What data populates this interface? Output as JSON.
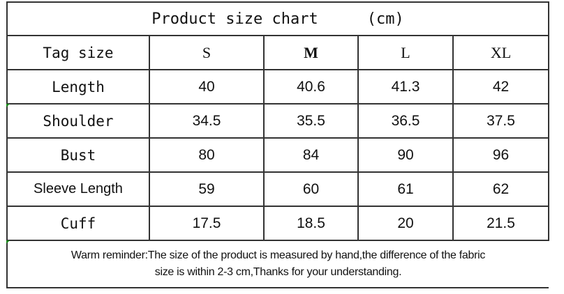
{
  "title": "Product size chart",
  "unit": "(cm)",
  "header": {
    "label": "Tag size",
    "sizes": [
      "S",
      "M",
      "L",
      "XL"
    ]
  },
  "rows": [
    {
      "label": "Length",
      "values": [
        "40",
        "40.6",
        "41.3",
        "42"
      ]
    },
    {
      "label": "Shoulder",
      "values": [
        "34.5",
        "35.5",
        "36.5",
        "37.5"
      ]
    },
    {
      "label": "Bust",
      "values": [
        "80",
        "84",
        "90",
        "96"
      ]
    },
    {
      "label": "Sleeve Length",
      "values": [
        "59",
        "60",
        "61",
        "62"
      ]
    },
    {
      "label": "Cuff",
      "values": [
        "17.5",
        "18.5",
        "20",
        "21.5"
      ]
    }
  ],
  "note": {
    "line1": "Warm reminder:The size of the product is measured by hand,the difference of the fabric",
    "line2": "size is within 2-3 cm,Thanks for your understanding."
  }
}
